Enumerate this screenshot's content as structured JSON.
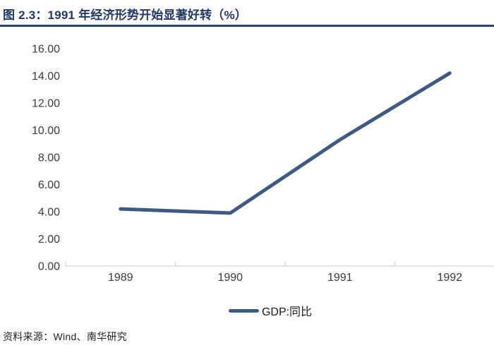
{
  "header": {
    "title": "图 2.3：1991 年经济形势开始显著好转（%）"
  },
  "chart_data": {
    "type": "line",
    "title": "图 2.3：1991 年经济形势开始显著好转（%）",
    "categories": [
      "1989",
      "1990",
      "1991",
      "1992"
    ],
    "series": [
      {
        "name": "GDP:同比",
        "values": [
          4.2,
          3.9,
          9.3,
          14.2
        ]
      }
    ],
    "xlabel": "",
    "ylabel": "",
    "ylim": [
      0,
      16
    ],
    "ytick_step": 2,
    "ytick_labels": [
      "0.00",
      "2.00",
      "4.00",
      "6.00",
      "8.00",
      "10.00",
      "12.00",
      "14.00",
      "16.00"
    ],
    "grid": false,
    "legend_position": "bottom",
    "line_color": "#3D5A85",
    "axis_color": "#D9D9D9"
  },
  "legend": {
    "label": "GDP:同比"
  },
  "footer": {
    "source": "资料来源：Wind、南华研究"
  },
  "colors": {
    "accent_navy": "#1F3864",
    "rule_navy": "#2F4571",
    "series_blue": "#3D5A85",
    "axis_gray": "#D9D9D9"
  }
}
